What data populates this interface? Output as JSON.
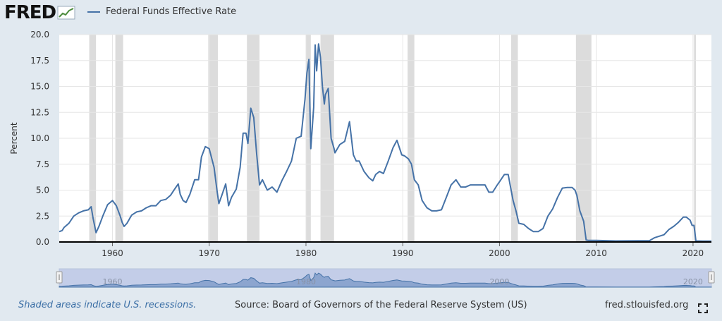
{
  "logo": {
    "text": "FRED"
  },
  "legend": {
    "label": "Federal Funds Effective Rate",
    "color": "#4572a7"
  },
  "footer": {
    "recession_note": "Shaded areas indicate U.S. recessions.",
    "source": "Source: Board of Governors of the Federal Reserve System (US)",
    "site": "fred.stlouisfed.org"
  },
  "icons": {
    "fullscreen": "fullscreen-icon"
  },
  "colors": {
    "background": "#e1e9f0",
    "line": "#4572a7",
    "recession": "#dcdcdc",
    "navigator_mask": "#c3cde8"
  },
  "chart_data": {
    "type": "line",
    "title": "",
    "xlabel": "",
    "ylabel": "Percent",
    "xlim": [
      1954.5,
      2021.9
    ],
    "ylim": [
      0,
      20
    ],
    "yticks": [
      0,
      2.5,
      5,
      7.5,
      10,
      12.5,
      15,
      17.5,
      20
    ],
    "ytick_labels": [
      "0.0",
      "2.5",
      "5.0",
      "7.5",
      "10.0",
      "12.5",
      "15.0",
      "17.5",
      "20.0"
    ],
    "xticks": [
      1960,
      1970,
      1980,
      1990,
      2000,
      2010,
      2020
    ],
    "xtick_labels": [
      "1960",
      "1970",
      "1980",
      "1990",
      "2000",
      "2010",
      "2020"
    ],
    "navigator_labels": [
      "1960",
      "1980",
      "2000",
      "2020"
    ],
    "grid": true,
    "recessions": [
      [
        1957.6,
        1958.3
      ],
      [
        1960.3,
        1961.1
      ],
      [
        1969.9,
        1970.9
      ],
      [
        1973.9,
        1975.2
      ],
      [
        1980.0,
        1980.5
      ],
      [
        1981.5,
        1982.9
      ],
      [
        1990.5,
        1991.2
      ],
      [
        2001.2,
        2001.9
      ],
      [
        2007.9,
        2009.5
      ],
      [
        2020.1,
        2020.3
      ]
    ],
    "series": [
      {
        "name": "Federal Funds Effective Rate",
        "x": [
          1954.5,
          1954.8,
          1955.0,
          1955.5,
          1956.0,
          1956.5,
          1957.0,
          1957.5,
          1957.8,
          1958.0,
          1958.3,
          1958.6,
          1959.0,
          1959.5,
          1960.0,
          1960.4,
          1960.8,
          1961.0,
          1961.2,
          1961.5,
          1961.8,
          1962.0,
          1962.5,
          1963.0,
          1963.5,
          1964.0,
          1964.5,
          1965.0,
          1965.5,
          1966.0,
          1966.5,
          1966.8,
          1967.0,
          1967.3,
          1967.6,
          1968.0,
          1968.5,
          1968.9,
          1969.2,
          1969.6,
          1970.0,
          1970.5,
          1970.8,
          1971.0,
          1971.3,
          1971.7,
          1972.0,
          1972.3,
          1972.8,
          1973.2,
          1973.5,
          1973.8,
          1974.0,
          1974.3,
          1974.6,
          1974.9,
          1975.2,
          1975.5,
          1976.0,
          1976.5,
          1977.0,
          1977.5,
          1978.0,
          1978.5,
          1979.0,
          1979.5,
          1979.9,
          1980.1,
          1980.3,
          1980.5,
          1980.8,
          1980.95,
          1981.1,
          1981.3,
          1981.5,
          1981.7,
          1981.9,
          1982.0,
          1982.3,
          1982.6,
          1982.9,
          1983.0,
          1983.5,
          1984.0,
          1984.5,
          1984.9,
          1985.2,
          1985.5,
          1986.0,
          1986.5,
          1986.9,
          1987.2,
          1987.6,
          1988.0,
          1988.5,
          1989.0,
          1989.4,
          1989.9,
          1990.2,
          1990.6,
          1990.9,
          1991.2,
          1991.6,
          1992.0,
          1992.5,
          1993.0,
          1993.5,
          1994.0,
          1994.5,
          1995.0,
          1995.5,
          1996.0,
          1996.5,
          1997.0,
          1997.5,
          1998.0,
          1998.5,
          1998.9,
          1999.3,
          1999.7,
          2000.0,
          2000.5,
          2000.9,
          2001.1,
          2001.4,
          2001.7,
          2002.0,
          2002.5,
          2003.0,
          2003.5,
          2004.0,
          2004.5,
          2005.0,
          2005.5,
          2006.0,
          2006.5,
          2007.0,
          2007.5,
          2007.8,
          2008.0,
          2008.3,
          2008.7,
          2008.95,
          2009.2,
          2010.0,
          2012.0,
          2015.5,
          2016.0,
          2017.0,
          2017.5,
          2018.0,
          2018.5,
          2019.0,
          2019.3,
          2019.7,
          2019.9,
          2020.1,
          2020.3,
          2021.0,
          2021.9
        ],
        "y": [
          1.0,
          1.1,
          1.4,
          1.8,
          2.5,
          2.8,
          3.0,
          3.1,
          3.4,
          2.3,
          0.9,
          1.5,
          2.5,
          3.6,
          4.0,
          3.5,
          2.5,
          1.9,
          1.5,
          1.8,
          2.3,
          2.6,
          2.9,
          3.0,
          3.3,
          3.5,
          3.5,
          4.0,
          4.1,
          4.5,
          5.2,
          5.6,
          4.6,
          4.0,
          3.8,
          4.6,
          6.0,
          6.0,
          8.2,
          9.2,
          9.0,
          7.2,
          5.0,
          3.7,
          4.5,
          5.6,
          3.5,
          4.3,
          5.1,
          7.2,
          10.5,
          10.5,
          9.5,
          12.9,
          12.0,
          8.5,
          5.5,
          6.0,
          5.0,
          5.3,
          4.8,
          5.9,
          6.8,
          7.8,
          10.0,
          10.2,
          13.8,
          16.3,
          17.6,
          9.0,
          13.0,
          19.0,
          16.5,
          19.1,
          17.8,
          15.0,
          13.3,
          14.2,
          14.8,
          10.0,
          9.0,
          8.6,
          9.4,
          9.7,
          11.6,
          8.4,
          7.8,
          7.8,
          6.8,
          6.2,
          5.9,
          6.5,
          6.8,
          6.6,
          7.8,
          9.1,
          9.8,
          8.4,
          8.3,
          8.0,
          7.5,
          6.0,
          5.5,
          4.0,
          3.3,
          3.0,
          3.0,
          3.1,
          4.3,
          5.5,
          6.0,
          5.3,
          5.3,
          5.5,
          5.5,
          5.5,
          5.5,
          4.8,
          4.8,
          5.4,
          5.8,
          6.5,
          6.5,
          5.5,
          4.0,
          3.0,
          1.8,
          1.7,
          1.3,
          1.0,
          1.0,
          1.3,
          2.5,
          3.2,
          4.3,
          5.2,
          5.25,
          5.25,
          5.0,
          4.5,
          3.0,
          2.0,
          0.2,
          0.15,
          0.15,
          0.1,
          0.13,
          0.4,
          0.7,
          1.2,
          1.5,
          1.9,
          2.4,
          2.4,
          2.1,
          1.6,
          1.6,
          0.1,
          0.08,
          0.08
        ]
      }
    ]
  }
}
